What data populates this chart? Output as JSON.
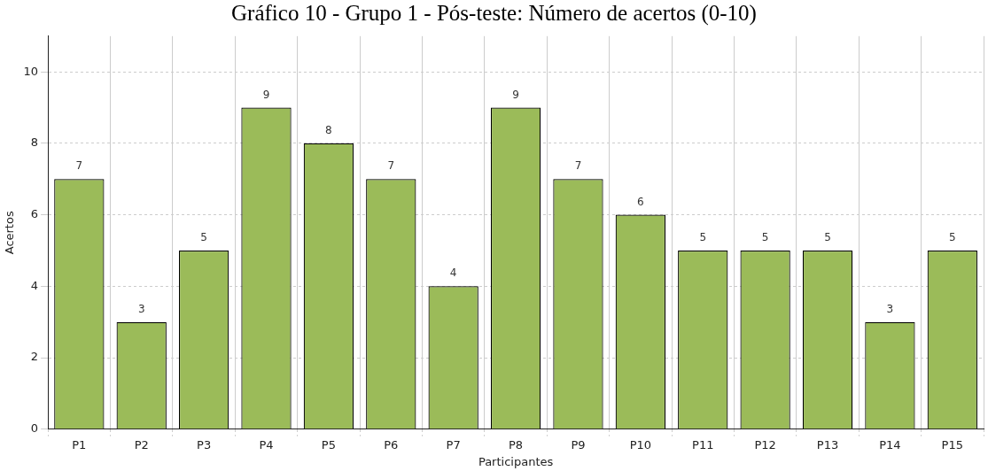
{
  "chart_data": {
    "type": "bar",
    "title": "Gráfico 10 - Grupo 1 - Pós-teste: Número de acertos (0-10)",
    "xlabel": "Participantes",
    "ylabel": "Acertos",
    "categories": [
      "P1",
      "P2",
      "P3",
      "P4",
      "P5",
      "P6",
      "P7",
      "P8",
      "P9",
      "P10",
      "P11",
      "P12",
      "P13",
      "P14",
      "P15"
    ],
    "values": [
      7,
      3,
      5,
      9,
      8,
      7,
      4,
      9,
      7,
      6,
      5,
      5,
      5,
      3,
      5
    ],
    "color": "#9bbb59",
    "ylim": [
      0,
      11
    ],
    "yticks": [
      0,
      2,
      4,
      6,
      8,
      10
    ],
    "grid": true,
    "data_labels": true
  }
}
